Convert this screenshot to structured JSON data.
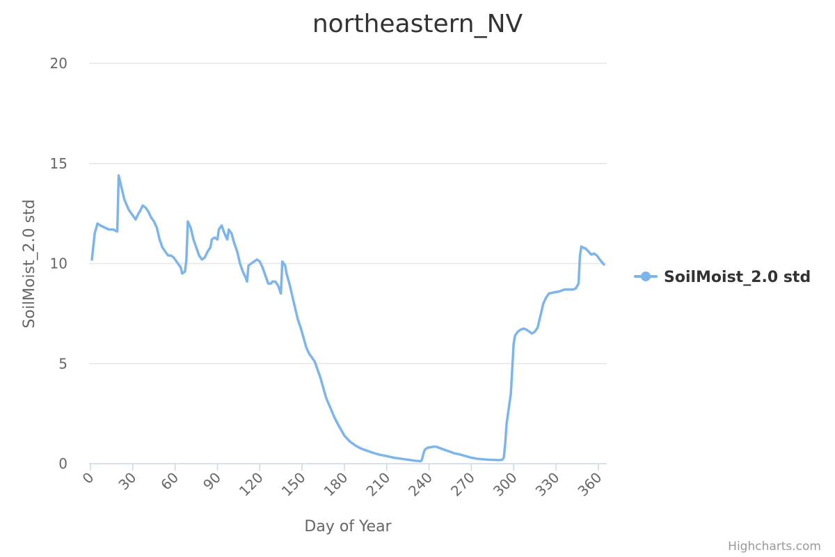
{
  "chart_data": {
    "type": "line",
    "title": "northeastern_NV",
    "xlabel": "Day of Year",
    "ylabel": "SoilMoist_2.0 std",
    "xlim": [
      -1,
      366
    ],
    "ylim": [
      0,
      20
    ],
    "x_ticks": [
      0,
      30,
      60,
      90,
      120,
      150,
      180,
      210,
      240,
      270,
      300,
      330,
      360
    ],
    "y_ticks": [
      0,
      5,
      10,
      15,
      20
    ],
    "grid": true,
    "legend": "right",
    "series": [
      {
        "name": "SoilMoist_2.0 std",
        "color": "#7cb5ec",
        "x": [
          1,
          3,
          5,
          7,
          10,
          13,
          16,
          19,
          20,
          22,
          24,
          27,
          29,
          32,
          34,
          35,
          37,
          39,
          41,
          43,
          45,
          47,
          49,
          51,
          53,
          55,
          57,
          59,
          61,
          63,
          64,
          65,
          67,
          68,
          69,
          71,
          73,
          75,
          77,
          79,
          81,
          83,
          85,
          86,
          88,
          90,
          91,
          93,
          95,
          97,
          98,
          100,
          102,
          104,
          106,
          108,
          110,
          111,
          112,
          114,
          116,
          118,
          120,
          122,
          124,
          126,
          128,
          129,
          131,
          133,
          135,
          136,
          138,
          139,
          141,
          143,
          145,
          147,
          149,
          151,
          153,
          155,
          157,
          159,
          161,
          163,
          165,
          167,
          170,
          173,
          176,
          180,
          184,
          188,
          192,
          196,
          200,
          205,
          210,
          215,
          220,
          225,
          230,
          234,
          235,
          236,
          237,
          239,
          241,
          243,
          245,
          250,
          254,
          258,
          262,
          266,
          270,
          274,
          278,
          282,
          286,
          290,
          292,
          293,
          294,
          295,
          296,
          298,
          300,
          301,
          302,
          303,
          305,
          307,
          309,
          311,
          313,
          315,
          317,
          319,
          321,
          323,
          325,
          328,
          332,
          336,
          340,
          342,
          344,
          346,
          347,
          348,
          349,
          351,
          353,
          355,
          357,
          359,
          361,
          364
        ],
        "y": [
          10.2,
          11.5,
          12.0,
          11.9,
          11.8,
          11.7,
          11.7,
          11.6,
          14.4,
          13.8,
          13.2,
          12.7,
          12.5,
          12.2,
          12.5,
          12.6,
          12.9,
          12.8,
          12.6,
          12.3,
          12.1,
          11.8,
          11.2,
          10.8,
          10.6,
          10.4,
          10.4,
          10.3,
          10.1,
          9.9,
          9.8,
          9.5,
          9.6,
          10.2,
          12.1,
          11.8,
          11.2,
          10.8,
          10.4,
          10.2,
          10.3,
          10.6,
          10.8,
          11.2,
          11.3,
          11.2,
          11.7,
          11.9,
          11.5,
          11.2,
          11.7,
          11.5,
          11.0,
          10.6,
          10.0,
          9.6,
          9.3,
          9.1,
          9.9,
          10.0,
          10.1,
          10.2,
          10.1,
          9.8,
          9.4,
          9.0,
          9.0,
          9.1,
          9.1,
          8.9,
          8.5,
          10.1,
          9.9,
          9.5,
          9.0,
          8.4,
          7.8,
          7.2,
          6.8,
          6.3,
          5.8,
          5.5,
          5.3,
          5.1,
          4.7,
          4.3,
          3.8,
          3.3,
          2.8,
          2.3,
          1.9,
          1.4,
          1.1,
          0.9,
          0.75,
          0.65,
          0.55,
          0.45,
          0.38,
          0.3,
          0.25,
          0.2,
          0.15,
          0.12,
          0.2,
          0.5,
          0.7,
          0.8,
          0.82,
          0.85,
          0.85,
          0.72,
          0.62,
          0.52,
          0.46,
          0.38,
          0.3,
          0.25,
          0.22,
          0.2,
          0.19,
          0.18,
          0.2,
          0.3,
          1.0,
          2.0,
          2.5,
          3.5,
          6.0,
          6.4,
          6.5,
          6.6,
          6.7,
          6.75,
          6.7,
          6.6,
          6.5,
          6.6,
          6.8,
          7.4,
          8.0,
          8.3,
          8.5,
          8.55,
          8.6,
          8.7,
          8.7,
          8.7,
          8.75,
          9.0,
          10.4,
          10.85,
          10.8,
          10.75,
          10.6,
          10.45,
          10.5,
          10.4,
          10.2,
          9.95
        ]
      }
    ]
  },
  "credits": "Highcharts.com"
}
